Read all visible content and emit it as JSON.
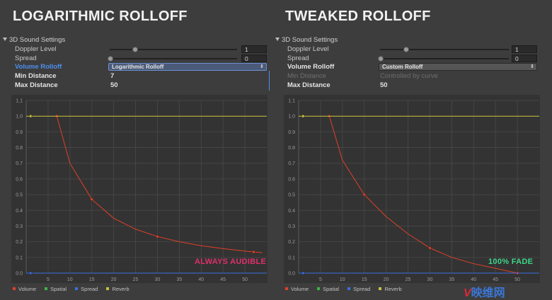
{
  "panels": [
    {
      "title": "LOGARITHMIC ROLLOFF",
      "section": "3D Sound Settings",
      "doppler": {
        "label": "Doppler Level",
        "value": "1",
        "fraction": 0.2
      },
      "spread": {
        "label": "Spread",
        "value": "0",
        "fraction": 0.0
      },
      "rolloff": {
        "label": "Volume Rolloff",
        "value": "Logarithmic Rolloff"
      },
      "min": {
        "label": "Min Distance",
        "value": "7"
      },
      "max": {
        "label": "Max Distance",
        "value": "50"
      },
      "caption": "ALWAYS AUDIBLE",
      "caption_color": "#e0306a"
    },
    {
      "title": "TWEAKED ROLLOFF",
      "section": "3D Sound Settings",
      "doppler": {
        "label": "Doppler Level",
        "value": "1",
        "fraction": 0.2
      },
      "spread": {
        "label": "Spread",
        "value": "0",
        "fraction": 0.0
      },
      "rolloff": {
        "label": "Volume Rolloff",
        "value": "Custom Rolloff"
      },
      "min": {
        "label": "Min Distance",
        "value": "Controlled by curve"
      },
      "max": {
        "label": "Max Distance",
        "value": "50"
      },
      "caption": "100% FADE",
      "caption_color": "#3ed68a"
    }
  ],
  "legend": [
    "Volume",
    "Spatial",
    "Spread",
    "Reverb"
  ],
  "legend_colors": {
    "volume": "#e0402a",
    "spatial": "#3bb44a",
    "spread": "#3a6fe0",
    "reverb": "#c8c040"
  },
  "watermark": {
    "accent": "V",
    "text": "映维网"
  },
  "chart_data": [
    {
      "type": "line",
      "xlim": [
        0,
        55
      ],
      "ylim": [
        0,
        1.1
      ],
      "x_ticks": [
        "5",
        "10",
        "15",
        "20",
        "25",
        "30",
        "35",
        "40",
        "45",
        "50"
      ],
      "y_ticks": [
        "0.0",
        "0.1",
        "0.2",
        "0.3",
        "0.4",
        "0.5",
        "0.6",
        "0.7",
        "0.8",
        "0.9",
        "1.0",
        "1.1"
      ],
      "grid": true,
      "series": [
        {
          "name": "Volume",
          "x": [
            7,
            10,
            15,
            20,
            25,
            30,
            35,
            40,
            45,
            50,
            54
          ],
          "y": [
            1.0,
            0.7,
            0.47,
            0.35,
            0.28,
            0.233,
            0.2,
            0.175,
            0.156,
            0.14,
            0.13
          ],
          "markers": [
            7,
            15,
            30,
            52
          ]
        },
        {
          "name": "Reverb",
          "x": [
            0,
            55
          ],
          "y": [
            1.0,
            1.0
          ],
          "markers": [
            1
          ]
        },
        {
          "name": "Spread",
          "x": [
            0,
            55
          ],
          "y": [
            0.0,
            0.0
          ],
          "markers": [
            1
          ]
        }
      ]
    },
    {
      "type": "line",
      "xlim": [
        0,
        55
      ],
      "ylim": [
        0,
        1.1
      ],
      "x_ticks": [
        "5",
        "10",
        "15",
        "20",
        "25",
        "30",
        "35",
        "40",
        "45",
        "50"
      ],
      "y_ticks": [
        "0.0",
        "0.1",
        "0.2",
        "0.3",
        "0.4",
        "0.5",
        "0.6",
        "0.7",
        "0.8",
        "0.9",
        "1.0",
        "1.1"
      ],
      "grid": true,
      "series": [
        {
          "name": "Volume",
          "x": [
            7,
            10,
            15,
            20,
            25,
            30,
            35,
            40,
            45,
            50
          ],
          "y": [
            1.0,
            0.72,
            0.5,
            0.36,
            0.25,
            0.16,
            0.1,
            0.06,
            0.03,
            0.0
          ],
          "markers": [
            7,
            15,
            30,
            50
          ]
        },
        {
          "name": "Reverb",
          "x": [
            0,
            55
          ],
          "y": [
            1.0,
            1.0
          ],
          "markers": [
            1
          ]
        },
        {
          "name": "Spread",
          "x": [
            0,
            55
          ],
          "y": [
            0.0,
            0.0
          ],
          "markers": [
            1
          ]
        }
      ]
    }
  ]
}
